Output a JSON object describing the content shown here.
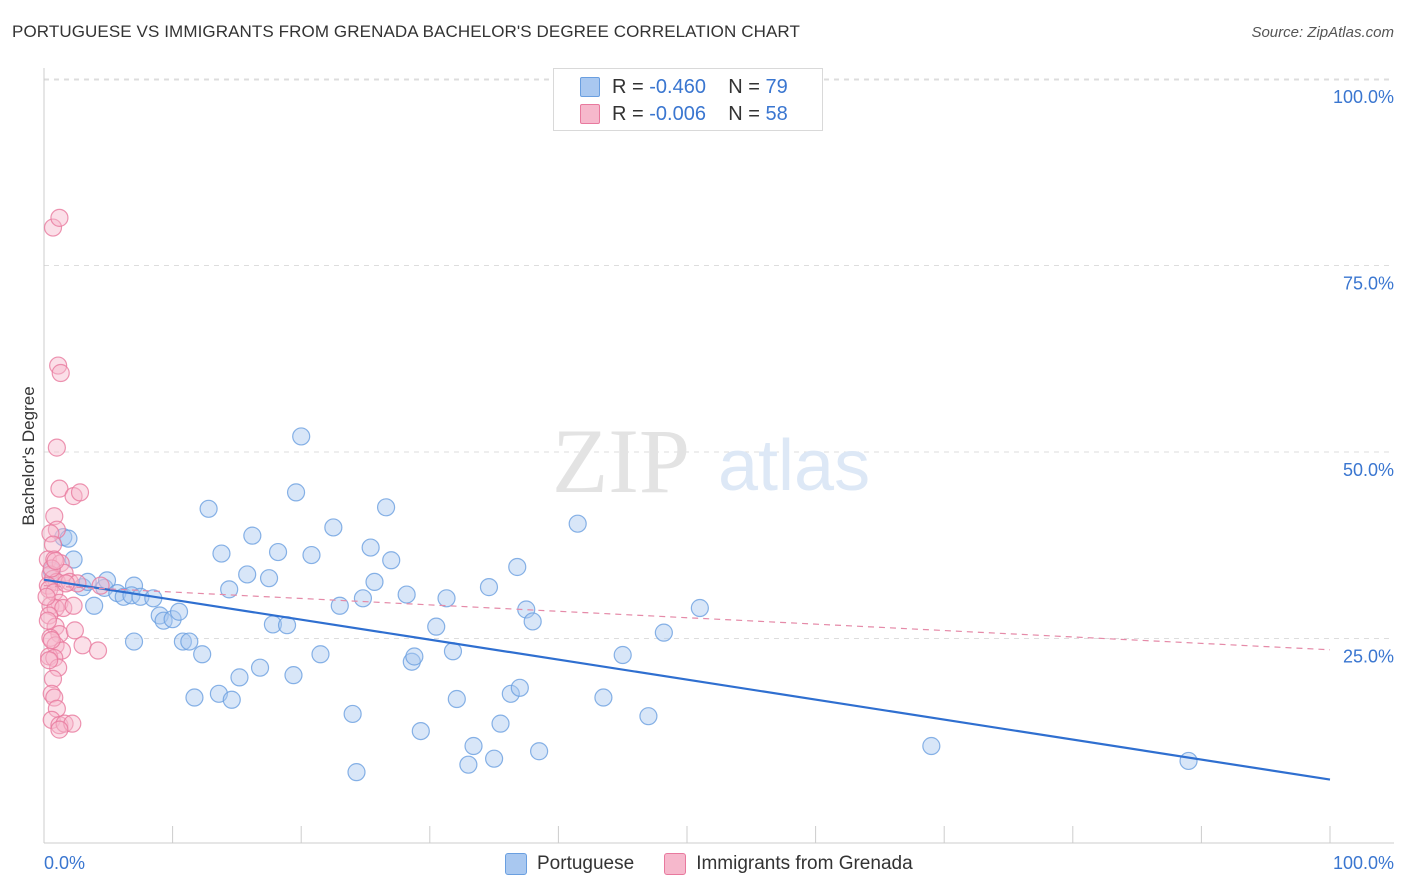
{
  "header": {
    "title": "PORTUGUESE VS IMMIGRANTS FROM GRENADA BACHELOR'S DEGREE CORRELATION CHART",
    "source": "Source: ZipAtlas.com"
  },
  "watermark": {
    "zip": "ZIP",
    "atlas": "atlas"
  },
  "legend": {
    "r_label": "R =",
    "n_label": "N =",
    "series": [
      {
        "name": "Portuguese",
        "r": "-0.460",
        "n": "79"
      },
      {
        "name": "Immigrants from Grenada",
        "r": "-0.006",
        "n": "58"
      }
    ]
  },
  "colors": {
    "blue_fill": "#a9c8f0",
    "blue_stroke": "#6a9fe0",
    "blue_line": "#2f6fd0",
    "pink_fill": "#f6b8cc",
    "pink_stroke": "#e8799e",
    "pink_line": "#e58aa8",
    "tick_text": "#3a76d0",
    "grid": "#dddddd"
  },
  "chart_data": {
    "type": "scatter",
    "title": "PORTUGUESE VS IMMIGRANTS FROM GRENADA BACHELOR'S DEGREE CORRELATION CHART",
    "xlabel": "",
    "ylabel": "Bachelor's Degree",
    "xlim": [
      0,
      100
    ],
    "ylim": [
      0,
      100
    ],
    "x_tick_labels": [
      "0.0%",
      "100.0%"
    ],
    "y_ticks": [
      {
        "value": 100,
        "label": "100.0%"
      },
      {
        "value": 75,
        "label": "75.0%"
      },
      {
        "value": 50,
        "label": "50.0%"
      },
      {
        "value": 25,
        "label": "25.0%"
      }
    ],
    "series": [
      {
        "name": "Portuguese",
        "color": "blue",
        "trend": {
          "x": [
            0,
            100
          ],
          "y": [
            35.3,
            8.5
          ],
          "style": "solid"
        },
        "points": [
          [
            0.6,
            36.5
          ],
          [
            1.5,
            41
          ],
          [
            1.9,
            40.8
          ],
          [
            2.3,
            38
          ],
          [
            3.0,
            34.3
          ],
          [
            3.4,
            35
          ],
          [
            3.9,
            31.8
          ],
          [
            4.7,
            34.2
          ],
          [
            4.9,
            35.2
          ],
          [
            5.7,
            33.5
          ],
          [
            6.2,
            33
          ],
          [
            7.0,
            34.5
          ],
          [
            6.8,
            33.2
          ],
          [
            7.5,
            33
          ],
          [
            7.0,
            27
          ],
          [
            8.5,
            32.8
          ],
          [
            9.0,
            30.5
          ],
          [
            9.3,
            29.8
          ],
          [
            10.0,
            30
          ],
          [
            10.5,
            31
          ],
          [
            10.8,
            27
          ],
          [
            11.3,
            27
          ],
          [
            11.7,
            19.5
          ],
          [
            12.3,
            25.3
          ],
          [
            12.8,
            44.8
          ],
          [
            13.6,
            20
          ],
          [
            13.8,
            38.8
          ],
          [
            14.4,
            34
          ],
          [
            14.6,
            19.2
          ],
          [
            15.2,
            22.2
          ],
          [
            15.8,
            36
          ],
          [
            16.2,
            41.2
          ],
          [
            16.8,
            23.5
          ],
          [
            17.5,
            35.5
          ],
          [
            17.8,
            29.3
          ],
          [
            18.2,
            39
          ],
          [
            18.9,
            29.2
          ],
          [
            19.4,
            22.5
          ],
          [
            19.6,
            47
          ],
          [
            20.0,
            54.5
          ],
          [
            20.8,
            38.6
          ],
          [
            21.5,
            25.3
          ],
          [
            22.5,
            42.3
          ],
          [
            23.0,
            31.8
          ],
          [
            24.0,
            17.3
          ],
          [
            24.3,
            9.5
          ],
          [
            24.8,
            32.8
          ],
          [
            25.4,
            39.6
          ],
          [
            25.7,
            35
          ],
          [
            26.6,
            45
          ],
          [
            27.0,
            37.9
          ],
          [
            28.2,
            33.3
          ],
          [
            28.6,
            24.3
          ],
          [
            28.8,
            25
          ],
          [
            29.3,
            15
          ],
          [
            30.5,
            29
          ],
          [
            31.3,
            32.8
          ],
          [
            31.8,
            25.7
          ],
          [
            32.1,
            19.3
          ],
          [
            33.0,
            10.5
          ],
          [
            33.4,
            13
          ],
          [
            35.0,
            11.3
          ],
          [
            34.6,
            34.3
          ],
          [
            35.5,
            16
          ],
          [
            36.3,
            20
          ],
          [
            36.8,
            37
          ],
          [
            37.0,
            20.8
          ],
          [
            37.5,
            31.3
          ],
          [
            38.0,
            29.7
          ],
          [
            38.5,
            12.3
          ],
          [
            41.5,
            42.8
          ],
          [
            43.5,
            19.5
          ],
          [
            45.0,
            25.2
          ],
          [
            47.0,
            17
          ],
          [
            48.2,
            28.2
          ],
          [
            51.0,
            31.5
          ],
          [
            69.0,
            13
          ],
          [
            89.0,
            11
          ]
        ]
      },
      {
        "name": "Immigrants from Grenada",
        "color": "pink",
        "trend": {
          "x": [
            0,
            100
          ],
          "y": [
            34.5,
            25.9
          ],
          "style": "dashed"
        },
        "points": [
          [
            0.7,
            82.5
          ],
          [
            1.2,
            83.8
          ],
          [
            1.1,
            64
          ],
          [
            1.3,
            63
          ],
          [
            1.0,
            53
          ],
          [
            1.2,
            47.5
          ],
          [
            2.3,
            46.5
          ],
          [
            2.8,
            47
          ],
          [
            0.8,
            43.8
          ],
          [
            1.0,
            42
          ],
          [
            0.5,
            41.5
          ],
          [
            0.7,
            40
          ],
          [
            0.3,
            38
          ],
          [
            0.8,
            38
          ],
          [
            1.3,
            37.5
          ],
          [
            1.6,
            36.2
          ],
          [
            0.5,
            36
          ],
          [
            0.7,
            35.4
          ],
          [
            1.0,
            35
          ],
          [
            0.3,
            34.5
          ],
          [
            2.0,
            35
          ],
          [
            2.6,
            34.8
          ],
          [
            4.4,
            34.5
          ],
          [
            0.4,
            34
          ],
          [
            0.8,
            33.6
          ],
          [
            1.2,
            32.2
          ],
          [
            0.5,
            31.8
          ],
          [
            0.9,
            31.5
          ],
          [
            1.5,
            31.5
          ],
          [
            2.3,
            31.8
          ],
          [
            0.4,
            30.5
          ],
          [
            0.9,
            29
          ],
          [
            1.2,
            28
          ],
          [
            2.4,
            28.5
          ],
          [
            0.5,
            27.5
          ],
          [
            0.9,
            26.5
          ],
          [
            3.0,
            26.5
          ],
          [
            1.4,
            25.8
          ],
          [
            4.2,
            25.8
          ],
          [
            0.4,
            25
          ],
          [
            0.8,
            24.8
          ],
          [
            1.1,
            23.5
          ],
          [
            0.7,
            22
          ],
          [
            0.6,
            20
          ],
          [
            0.8,
            19.5
          ],
          [
            1.0,
            18
          ],
          [
            0.6,
            16.5
          ],
          [
            1.2,
            15.8
          ],
          [
            1.6,
            16
          ],
          [
            2.2,
            16
          ],
          [
            1.2,
            15.2
          ],
          [
            0.4,
            24.5
          ],
          [
            0.6,
            36.8
          ],
          [
            0.9,
            37.8
          ],
          [
            0.2,
            33
          ],
          [
            0.3,
            29.8
          ],
          [
            0.6,
            27.2
          ],
          [
            1.7,
            34.8
          ]
        ]
      }
    ]
  }
}
